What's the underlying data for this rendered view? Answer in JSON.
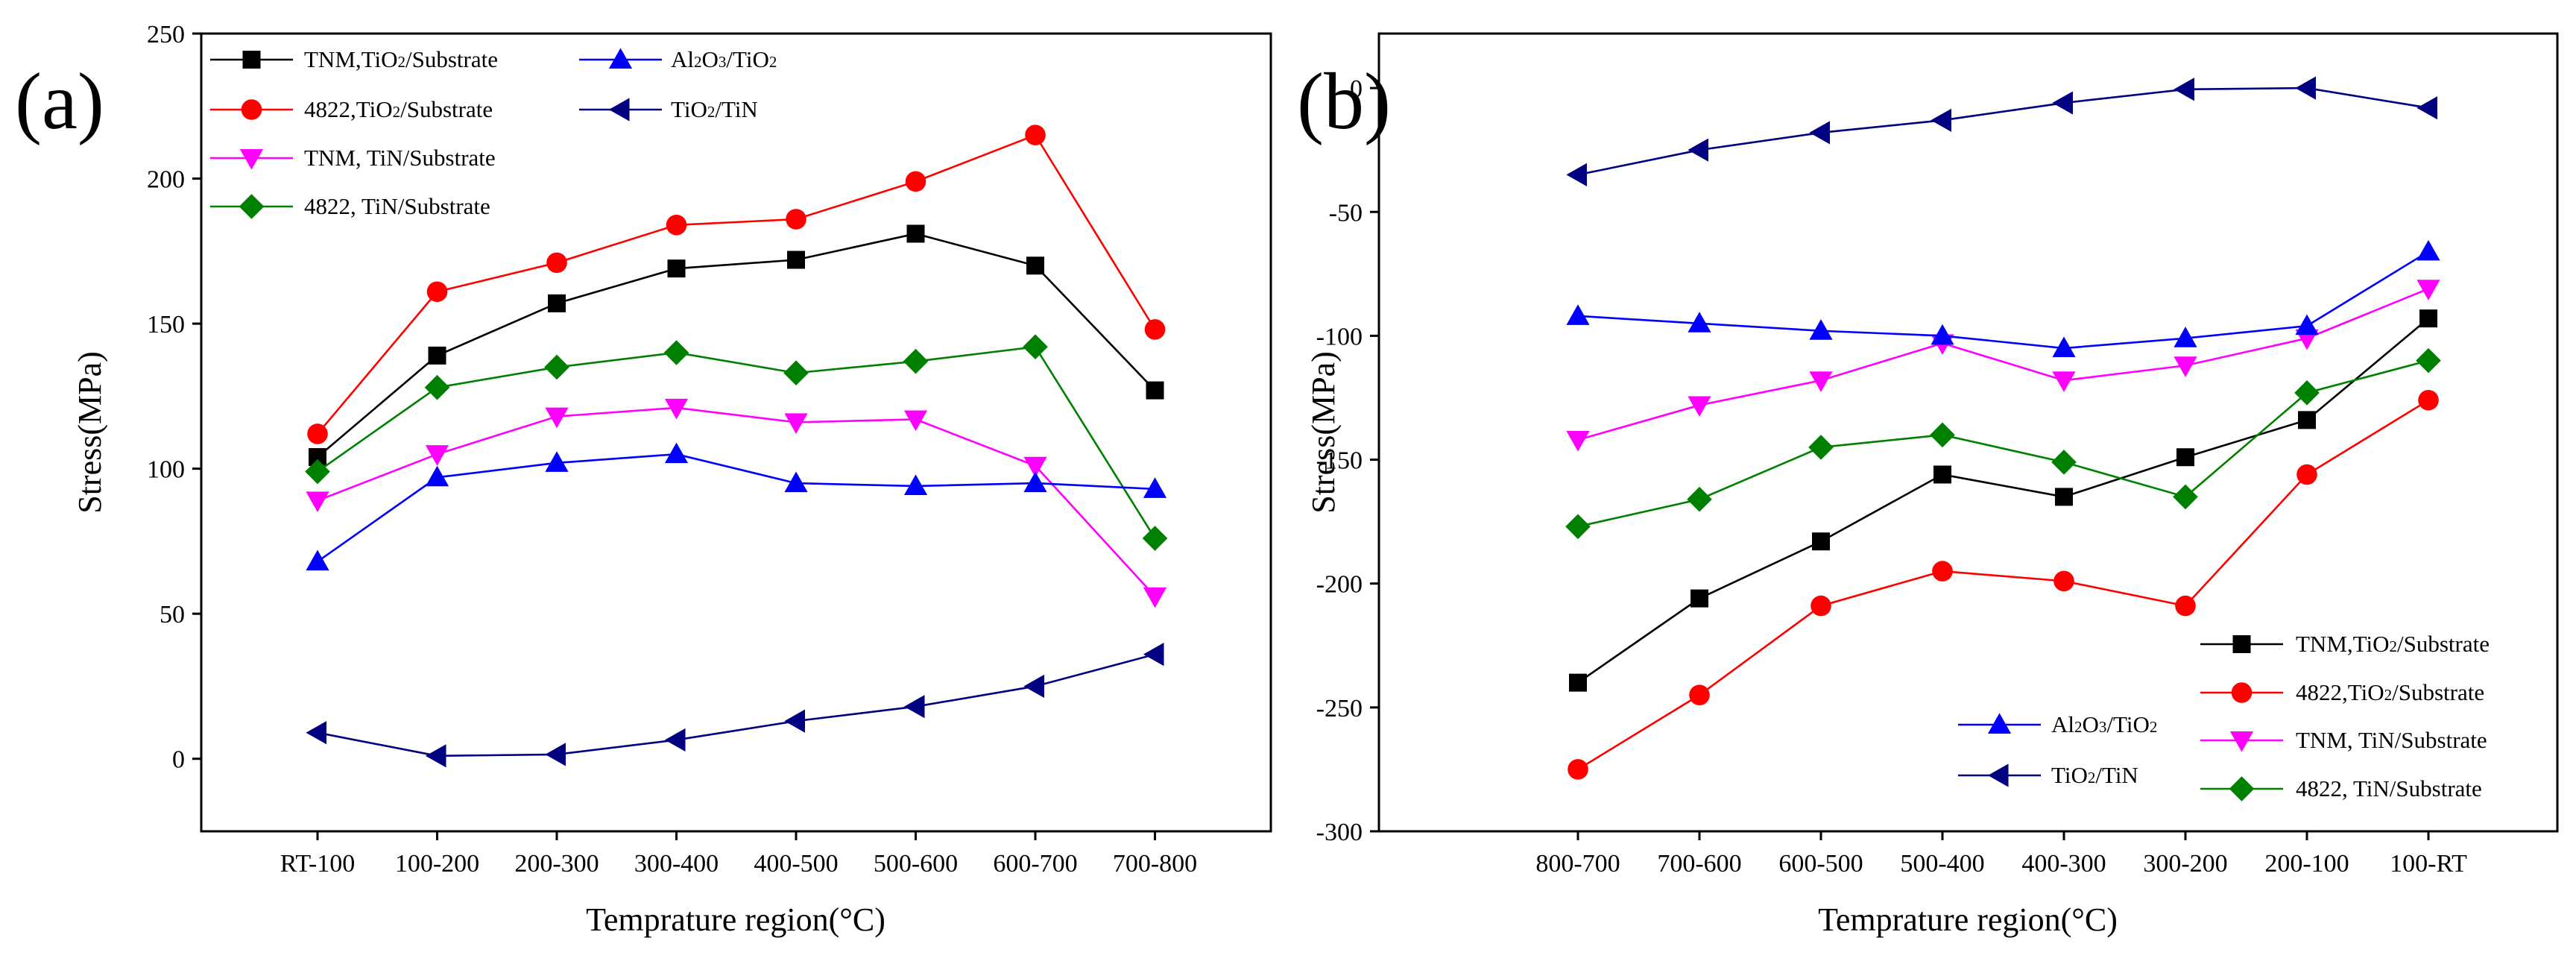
{
  "chart_data": [
    {
      "type": "line",
      "panel_label": "(a)",
      "xlabel": "Temprature region(°C)",
      "ylabel": "Stress(MPa)",
      "ylim": [
        -25,
        250
      ],
      "yticks": [
        0,
        50,
        100,
        150,
        200,
        250
      ],
      "categories": [
        "RT-100",
        "100-200",
        "200-300",
        "300-400",
        "400-500",
        "500-600",
        "600-700",
        "700-800"
      ],
      "grid": false,
      "legend_position": "top-left",
      "series": [
        {
          "name": "TNM,TiO2/Substrate",
          "color": "#000000",
          "marker": "square",
          "values": [
            104,
            139,
            157,
            169,
            172,
            181,
            170,
            127
          ]
        },
        {
          "name": "4822,TiO2/Substrate",
          "color": "#ff0000",
          "marker": "circle",
          "values": [
            112,
            161,
            171,
            184,
            186,
            199,
            215,
            148
          ]
        },
        {
          "name": "TNM, TiN/Substrate",
          "color": "#ff00ff",
          "marker": "triangle-down",
          "values": [
            89,
            105,
            118,
            121,
            116,
            117,
            101,
            56
          ]
        },
        {
          "name": "4822, TiN/Substrate",
          "color": "#008000",
          "marker": "diamond",
          "values": [
            99,
            128,
            135,
            140,
            133,
            137,
            142,
            76
          ]
        },
        {
          "name": "Al2O3/TiO2",
          "color": "#0000ff",
          "marker": "triangle-up",
          "values": [
            68,
            97,
            102,
            105,
            95,
            94,
            95,
            93
          ]
        },
        {
          "name": "TiO2/TiN",
          "color": "#000080",
          "marker": "triangle-left",
          "values": [
            9,
            1,
            1.5,
            6.5,
            13,
            18,
            25,
            36
          ]
        }
      ]
    },
    {
      "type": "line",
      "panel_label": "(b)",
      "xlabel": "Temprature region(°C)",
      "ylabel": "Stress(MPa)",
      "ylim": [
        -300,
        22
      ],
      "yticks": [
        -300,
        -250,
        -200,
        -150,
        -100,
        -50,
        0
      ],
      "categories": [
        "800-700",
        "700-600",
        "600-500",
        "500-400",
        "400-300",
        "300-200",
        "200-100",
        "100-RT"
      ],
      "grid": false,
      "legend_position": "bottom-right",
      "series": [
        {
          "name": "TNM,TiO2/Substrate",
          "color": "#000000",
          "marker": "square",
          "values": [
            -240,
            -206,
            -183,
            -156,
            -165,
            -149,
            -134,
            -93
          ]
        },
        {
          "name": "4822,TiO2/Substrate",
          "color": "#ff0000",
          "marker": "circle",
          "values": [
            -275,
            -245,
            -209,
            -195,
            -199,
            -209,
            -156,
            -126
          ]
        },
        {
          "name": "TNM, TiN/Substrate",
          "color": "#ff00ff",
          "marker": "triangle-down",
          "values": [
            -142,
            -128,
            -118,
            -103,
            -118,
            -112,
            -101,
            -81
          ]
        },
        {
          "name": "4822, TiN/Substrate",
          "color": "#008000",
          "marker": "diamond",
          "values": [
            -177,
            -166,
            -145,
            -140,
            -151,
            -165,
            -123,
            -110
          ]
        },
        {
          "name": "Al2O3/TiO2",
          "color": "#0000ff",
          "marker": "triangle-up",
          "values": [
            -92,
            -95,
            -98,
            -100,
            -105,
            -101,
            -96,
            -66
          ]
        },
        {
          "name": "TiO2/TiN",
          "color": "#000080",
          "marker": "triangle-left",
          "values": [
            -35,
            -25,
            -18,
            -13,
            -6,
            -0.5,
            0,
            -8
          ]
        }
      ]
    }
  ]
}
